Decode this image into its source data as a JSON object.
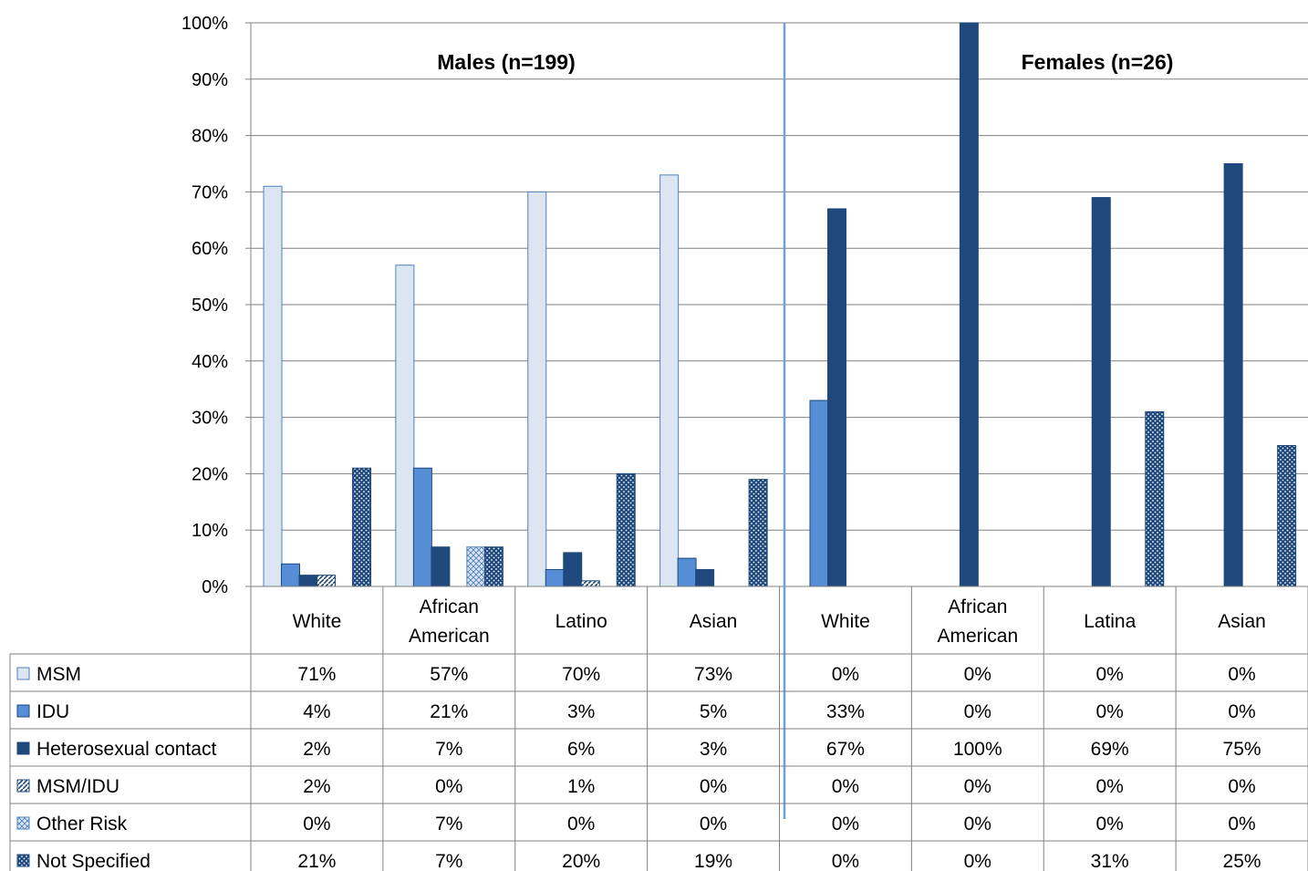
{
  "chart_data": {
    "type": "bar",
    "groups": [
      {
        "title": "Males (n=199)",
        "categories": [
          [
            "White"
          ],
          [
            "African",
            "American"
          ],
          [
            "Latino"
          ],
          [
            "Asian"
          ]
        ]
      },
      {
        "title": "Females (n=26)",
        "categories": [
          [
            "White"
          ],
          [
            "African",
            "American"
          ],
          [
            "Latina"
          ],
          [
            "Asian"
          ]
        ]
      }
    ],
    "yticks": [
      "0%",
      "10%",
      "20%",
      "30%",
      "40%",
      "50%",
      "60%",
      "70%",
      "80%",
      "90%",
      "100%"
    ],
    "ylim": [
      0,
      100
    ],
    "grid": true,
    "series": [
      {
        "name": "MSM",
        "pattern": "solid-light",
        "values": [
          71,
          57,
          70,
          73,
          0,
          0,
          0,
          0
        ],
        "labels": [
          "71%",
          "57%",
          "70%",
          "73%",
          "0%",
          "0%",
          "0%",
          "0%"
        ]
      },
      {
        "name": "IDU",
        "pattern": "solid-medium",
        "values": [
          4,
          21,
          3,
          5,
          33,
          0,
          0,
          0
        ],
        "labels": [
          "4%",
          "21%",
          "3%",
          "5%",
          "33%",
          "0%",
          "0%",
          "0%"
        ]
      },
      {
        "name": "Heterosexual contact",
        "pattern": "solid-dark",
        "values": [
          2,
          7,
          6,
          3,
          67,
          100,
          69,
          75
        ],
        "labels": [
          "2%",
          "7%",
          "6%",
          "3%",
          "67%",
          "100%",
          "69%",
          "75%"
        ]
      },
      {
        "name": "MSM/IDU",
        "pattern": "diagonal",
        "values": [
          2,
          0,
          1,
          0,
          0,
          0,
          0,
          0
        ],
        "labels": [
          "2%",
          "0%",
          "1%",
          "0%",
          "0%",
          "0%",
          "0%",
          "0%"
        ]
      },
      {
        "name": "Other Risk",
        "pattern": "crosshatch",
        "values": [
          0,
          7,
          0,
          0,
          0,
          0,
          0,
          0
        ],
        "labels": [
          "0%",
          "7%",
          "0%",
          "0%",
          "0%",
          "0%",
          "0%",
          "0%"
        ]
      },
      {
        "name": "Not Specified",
        "pattern": "dotted",
        "values": [
          21,
          7,
          20,
          19,
          0,
          0,
          31,
          25
        ],
        "labels": [
          "21%",
          "7%",
          "20%",
          "19%",
          "0%",
          "0%",
          "31%",
          "25%"
        ]
      }
    ],
    "colors": {
      "msm_fill": "#dce6f2",
      "msm_stroke": "#4f81bd",
      "idu_fill": "#558ed5",
      "idu_stroke": "#1f497d",
      "hetero_fill": "#1f497d",
      "dotted_fill": "#1f497d",
      "pattern_line": "#4f81bd",
      "grid": "#808080",
      "divider": "#6f9fd8"
    }
  }
}
